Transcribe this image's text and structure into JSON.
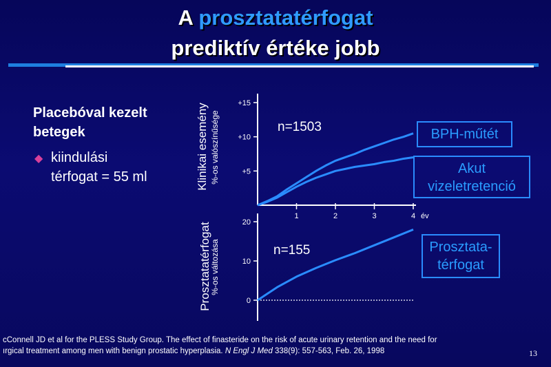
{
  "slide": {
    "title_line1_prefix": "A ",
    "title_line1_highlight": "prosztatatérfogat",
    "title_line2": "prediktív értéke jobb",
    "left_heading_line1": "Placebóval kezelt",
    "left_heading_line2": "betegek",
    "bullet_line1": "kiindulási",
    "bullet_line2": "térfogat = 55 ml",
    "footnote_line1": "cConnell JD et al for the PLESS Study Group. The effect of finasteride on the risk of acute urinary retention and the need for",
    "footnote_line2_plain": "ırgical treatment among men with benign prostatic hyperplasia. ",
    "footnote_line2_journal": "N Engl J Med",
    "footnote_line2_rest": " 338(9): 557-563, Feb. 26, 1998",
    "page_number": "13",
    "colors": {
      "background": "#0a0a66",
      "accent": "#2a8cff",
      "bullet": "#d8409a"
    }
  },
  "chart_data": [
    {
      "type": "line",
      "ylabel": "Klinikai esemény",
      "ylabel_sub": "%-os valószínűsége",
      "annotation": "n=1503",
      "x_ticks": [
        "1",
        "2",
        "3",
        "4"
      ],
      "x_unit": "év",
      "y_ticks": [
        "+5",
        "+10",
        "+15"
      ],
      "xlim": [
        0,
        4
      ],
      "ylim": [
        0,
        15
      ],
      "series": [
        {
          "name": "BPH-műtét",
          "color": "#2a8cff",
          "x": [
            0,
            0.25,
            0.5,
            0.75,
            1.0,
            1.25,
            1.5,
            1.75,
            2.0,
            2.25,
            2.5,
            2.75,
            3.0,
            3.25,
            3.5,
            3.75,
            4.0
          ],
          "y": [
            0,
            0.6,
            1.3,
            2.3,
            3.2,
            4.1,
            5.0,
            5.8,
            6.5,
            7.0,
            7.5,
            8.1,
            8.6,
            9.1,
            9.6,
            10.0,
            10.5
          ]
        },
        {
          "name": "Akut vizeletretenció",
          "color": "#2a8cff",
          "x": [
            0,
            0.25,
            0.5,
            0.75,
            1.0,
            1.25,
            1.5,
            1.75,
            2.0,
            2.25,
            2.5,
            2.75,
            3.0,
            3.25,
            3.5,
            3.75,
            4.0
          ],
          "y": [
            0,
            0.5,
            1.1,
            1.9,
            2.7,
            3.4,
            4.0,
            4.5,
            5.0,
            5.3,
            5.6,
            5.8,
            6.0,
            6.3,
            6.5,
            6.8,
            7.0
          ]
        }
      ],
      "legend_labels": {
        "surgery": "BPH-műtét",
        "retention_line1": "Akut",
        "retention_line2": "vizeletretenció"
      }
    },
    {
      "type": "line",
      "ylabel": "Prosztatatérfogat",
      "ylabel_sub": "%-os változása",
      "annotation": "n=155",
      "y_ticks": [
        "0",
        "10",
        "20"
      ],
      "xlim": [
        0,
        4
      ],
      "ylim": [
        0,
        20
      ],
      "series": [
        {
          "name": "Prosztatatérfogat",
          "color": "#2a8cff",
          "x": [
            0,
            0.5,
            1.0,
            1.5,
            2.0,
            2.5,
            3.0,
            3.5,
            4.0
          ],
          "y": [
            0,
            3.3,
            6.0,
            8.2,
            10.2,
            12.0,
            14.0,
            16.0,
            18.0
          ]
        }
      ],
      "baseline": 0,
      "legend_labels": {
        "volume_line1": "Prosztata-",
        "volume_line2": "térfogat"
      }
    }
  ]
}
